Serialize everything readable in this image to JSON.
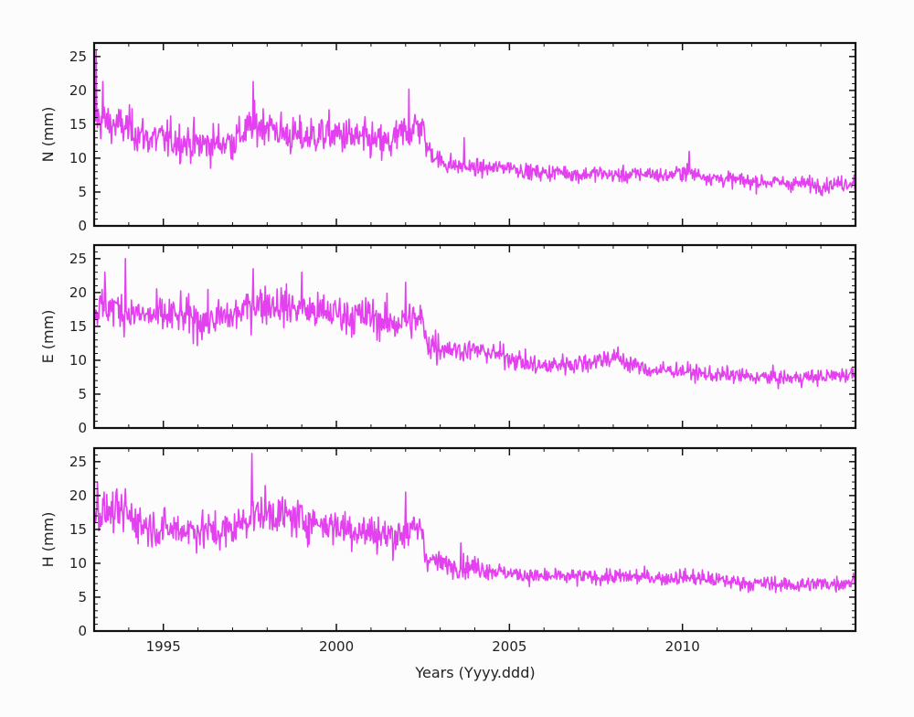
{
  "chart_data": {
    "type": "line",
    "xlabel": "Years (Yyyy.ddd)",
    "xlim": [
      1993.0,
      2015.0
    ],
    "xticks": [
      1995,
      2000,
      2005,
      2010
    ],
    "ylim": [
      0,
      27
    ],
    "yticks": [
      0,
      5,
      10,
      15,
      20,
      25
    ],
    "line_color": "#e340ef",
    "grid": false,
    "panels": [
      {
        "ylabel": "N (mm)",
        "series": [
          {
            "x": [
              1993.0,
              1993.5,
              1994.0,
              1994.5,
              1995.0,
              1995.5,
              1996.0,
              1996.5,
              1997.0,
              1997.5,
              1998.0,
              1998.5,
              1999.0,
              1999.5,
              2000.0,
              2000.5,
              2001.0,
              2001.5,
              2002.0,
              2002.5,
              2002.55,
              2003.0,
              2003.5,
              2004.0,
              2004.5,
              2005.0,
              2005.5,
              2006.0,
              2006.5,
              2007.0,
              2007.5,
              2008.0,
              2008.5,
              2009.0,
              2009.5,
              2010.0,
              2010.5,
              2011.0,
              2011.5,
              2012.0,
              2012.5,
              2013.0,
              2013.5,
              2014.0,
              2014.5,
              2015.0
            ],
            "values": [
              16.0,
              15.0,
              14.5,
              13.0,
              12.8,
              12.5,
              12.0,
              12.2,
              12.5,
              14.5,
              15.0,
              13.5,
              13.0,
              13.5,
              13.5,
              13.0,
              12.5,
              12.0,
              14.0,
              15.0,
              12.0,
              9.5,
              8.8,
              8.5,
              8.5,
              8.8,
              8.0,
              7.8,
              8.0,
              7.5,
              7.8,
              7.5,
              7.5,
              7.8,
              7.3,
              8.0,
              7.5,
              7.0,
              6.8,
              6.5,
              6.5,
              6.3,
              6.2,
              6.0,
              6.2,
              6.5
            ],
            "peaks": {
              "1993.05": 26.0,
              "1993.25": 21.3,
              "1997.6": 21.3,
              "2002.1": 20.2,
              "2003.7": 13.0,
              "2010.2": 11.0
            }
          }
        ]
      },
      {
        "ylabel": "E (mm)",
        "series": [
          {
            "x": [
              1993.0,
              1993.5,
              1994.0,
              1994.5,
              1995.0,
              1995.5,
              1996.0,
              1996.5,
              1997.0,
              1997.5,
              1998.0,
              1998.5,
              1999.0,
              1999.5,
              2000.0,
              2000.5,
              2001.0,
              2001.5,
              2002.0,
              2002.5,
              2002.55,
              2003.0,
              2003.5,
              2004.0,
              2004.5,
              2005.0,
              2005.5,
              2006.0,
              2006.5,
              2007.0,
              2007.5,
              2008.0,
              2008.5,
              2009.0,
              2009.5,
              2010.0,
              2010.5,
              2011.0,
              2011.5,
              2012.0,
              2012.5,
              2013.0,
              2013.5,
              2014.0,
              2014.5,
              2015.0
            ],
            "values": [
              17.5,
              18.0,
              17.0,
              16.5,
              16.5,
              16.5,
              16.0,
              16.0,
              16.5,
              18.0,
              18.5,
              18.0,
              17.5,
              17.0,
              17.0,
              16.5,
              16.5,
              15.5,
              15.8,
              16.0,
              13.0,
              12.0,
              11.5,
              11.5,
              11.0,
              10.5,
              9.5,
              9.0,
              9.5,
              9.5,
              10.0,
              10.5,
              9.5,
              8.5,
              8.5,
              8.5,
              8.0,
              7.8,
              7.8,
              7.5,
              7.5,
              7.3,
              7.5,
              7.5,
              7.8,
              8.0
            ],
            "peaks": {
              "1993.3": 23.0,
              "1993.9": 25.0,
              "1997.6": 23.5,
              "1999.0": 23.0,
              "2002.0": 21.5
            }
          }
        ]
      },
      {
        "ylabel": "H (mm)",
        "series": [
          {
            "x": [
              1993.0,
              1993.5,
              1994.0,
              1994.5,
              1995.0,
              1995.5,
              1996.0,
              1996.5,
              1997.0,
              1997.5,
              1998.0,
              1998.5,
              1999.0,
              1999.5,
              2000.0,
              2000.5,
              2001.0,
              2001.5,
              2002.0,
              2002.5,
              2002.55,
              2003.0,
              2003.5,
              2004.0,
              2004.5,
              2005.0,
              2005.5,
              2006.0,
              2006.5,
              2007.0,
              2007.5,
              2008.0,
              2008.5,
              2009.0,
              2009.5,
              2010.0,
              2010.5,
              2011.0,
              2011.5,
              2012.0,
              2012.5,
              2013.0,
              2013.5,
              2014.0,
              2014.5,
              2015.0
            ],
            "values": [
              17.5,
              17.5,
              17.0,
              15.5,
              15.0,
              15.0,
              15.0,
              14.5,
              15.0,
              17.0,
              17.5,
              17.0,
              16.5,
              16.0,
              15.5,
              15.0,
              14.5,
              14.0,
              14.5,
              15.0,
              11.0,
              10.0,
              9.5,
              9.5,
              9.0,
              8.5,
              8.2,
              8.0,
              8.0,
              8.0,
              8.0,
              8.0,
              8.0,
              8.0,
              7.8,
              8.0,
              7.8,
              7.5,
              7.3,
              7.0,
              7.0,
              6.8,
              6.8,
              7.0,
              7.0,
              7.5
            ],
            "peaks": {
              "1993.1": 22.0,
              "1993.9": 21.0,
              "1997.55": 26.2,
              "2002.0": 20.5,
              "2003.6": 13.0
            }
          }
        ]
      }
    ]
  }
}
